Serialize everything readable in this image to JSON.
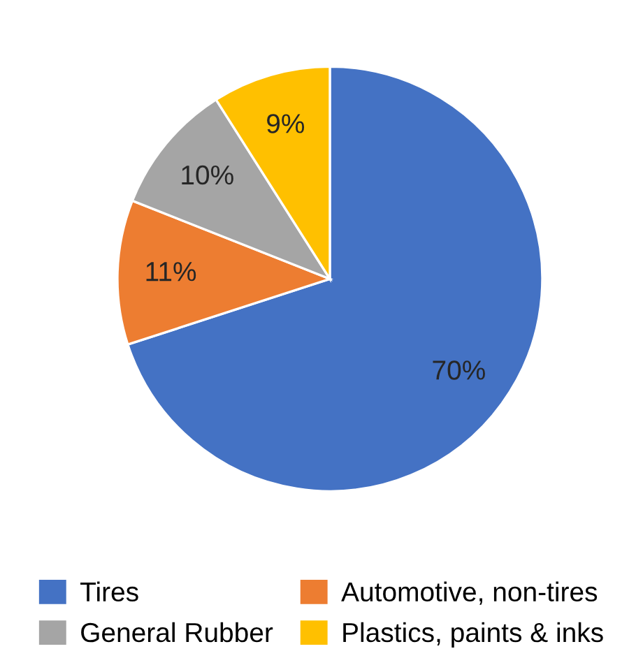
{
  "chart_data": {
    "type": "pie",
    "categories": [
      "Tires",
      "Automotive, non-tires",
      "General Rubber",
      "Plastics, paints & inks"
    ],
    "values": [
      70,
      11,
      10,
      9
    ],
    "colors": [
      "#4472c4",
      "#ed7d31",
      "#a5a5a5",
      "#ffc000"
    ],
    "value_labels": [
      "70%",
      "11%",
      "10%",
      "9%"
    ],
    "legend": "bottom"
  }
}
